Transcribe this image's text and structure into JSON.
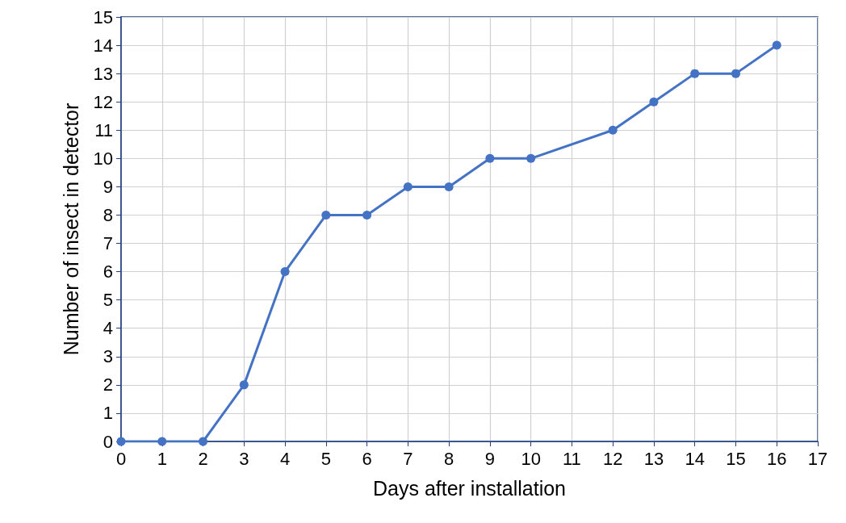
{
  "chart_data": {
    "type": "line",
    "xlabel": "Days after installation",
    "ylabel": "Number of insect in detector",
    "x": [
      0,
      1,
      2,
      3,
      4,
      5,
      6,
      7,
      8,
      9,
      10,
      12,
      13,
      14,
      15,
      16
    ],
    "series": [
      {
        "color": "#4472c4",
        "values": [
          0,
          0,
          0,
          2,
          6,
          8,
          8,
          9,
          9,
          10,
          10,
          11,
          12,
          13,
          13,
          14
        ]
      }
    ],
    "xlim": [
      0,
      17
    ],
    "xticks": [
      0,
      1,
      2,
      3,
      4,
      5,
      6,
      7,
      8,
      9,
      10,
      11,
      12,
      13,
      14,
      15,
      16,
      17
    ],
    "ylim": [
      0,
      15
    ],
    "yticks": [
      0,
      1,
      2,
      3,
      4,
      5,
      6,
      7,
      8,
      9,
      10,
      11,
      12,
      13,
      14,
      15
    ],
    "grid": true,
    "marker": "circle",
    "line_style": "solid"
  }
}
